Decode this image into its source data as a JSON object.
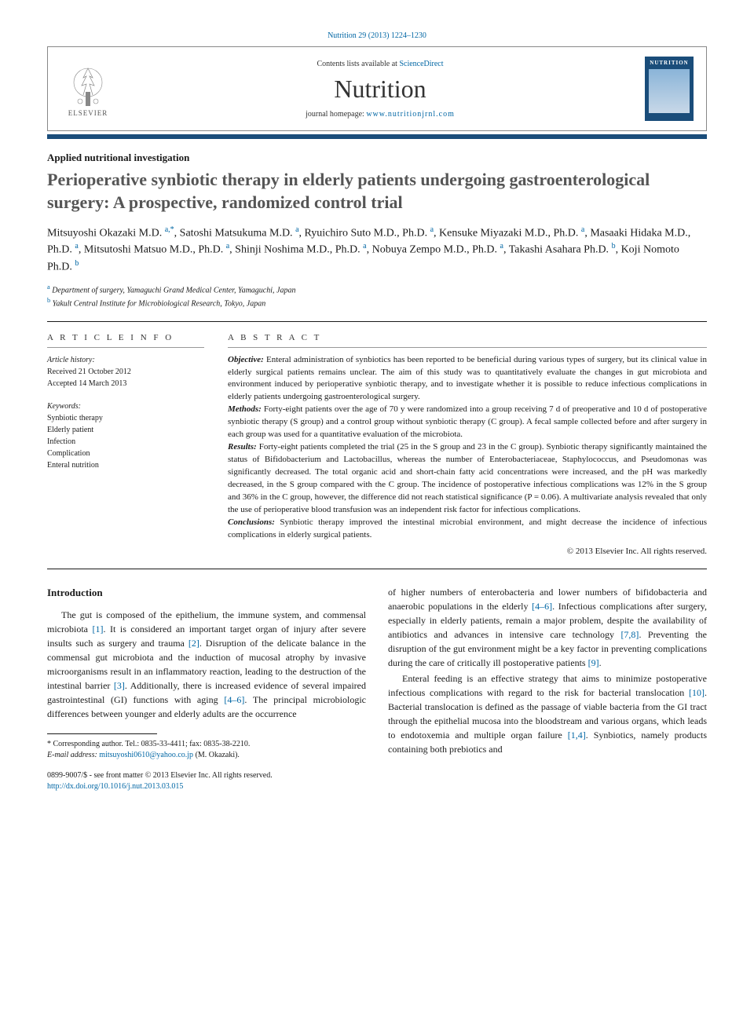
{
  "header": {
    "citation": "Nutrition 29 (2013) 1224–1230",
    "contents_prefix": "Contents lists available at ",
    "contents_link": "ScienceDirect",
    "journal": "Nutrition",
    "homepage_prefix": "journal homepage: ",
    "homepage_link": "www.nutritionjrnl.com",
    "elsevier": "ELSEVIER",
    "thumb_title": "NUTRITION"
  },
  "article": {
    "type": "Applied nutritional investigation",
    "title": "Perioperative synbiotic therapy in elderly patients undergoing gastroenterological surgery: A prospective, randomized control trial",
    "authors_html": "Mitsuyoshi Okazaki M.D. <sup>a,*</sup>, Satoshi Matsukuma M.D. <sup>a</sup>, Ryuichiro Suto M.D., Ph.D. <sup>a</sup>, Kensuke Miyazaki M.D., Ph.D. <sup>a</sup>, Masaaki Hidaka M.D., Ph.D. <sup>a</sup>, Mitsutoshi Matsuo M.D., Ph.D. <sup>a</sup>, Shinji Noshima M.D., Ph.D. <sup>a</sup>, Nobuya Zempo M.D., Ph.D. <sup>a</sup>, Takashi Asahara Ph.D. <sup>b</sup>, Koji Nomoto Ph.D. <sup>b</sup>",
    "affiliations": {
      "a": "Department of surgery, Yamaguchi Grand Medical Center, Yamaguchi, Japan",
      "b": "Yakult Central Institute for Microbiological Research, Tokyo, Japan"
    }
  },
  "info": {
    "heading_left": "A R T I C L E   I N F O",
    "heading_right": "A B S T R A C T",
    "history_label": "Article history:",
    "received": "Received 21 October 2012",
    "accepted": "Accepted 14 March 2013",
    "keywords_label": "Keywords:",
    "keywords": [
      "Synbiotic therapy",
      "Elderly patient",
      "Infection",
      "Complication",
      "Enteral nutrition"
    ]
  },
  "abstract": {
    "objective_lead": "Objective:",
    "objective": " Enteral administration of synbiotics has been reported to be beneficial during various types of surgery, but its clinical value in elderly surgical patients remains unclear. The aim of this study was to quantitatively evaluate the changes in gut microbiota and environment induced by perioperative synbiotic therapy, and to investigate whether it is possible to reduce infectious complications in elderly patients undergoing gastroenterological surgery.",
    "methods_lead": "Methods:",
    "methods": " Forty-eight patients over the age of 70 y were randomized into a group receiving 7 d of preoperative and 10 d of postoperative synbiotic therapy (S group) and a control group without synbiotic therapy (C group). A fecal sample collected before and after surgery in each group was used for a quantitative evaluation of the microbiota.",
    "results_lead": "Results:",
    "results": " Forty-eight patients completed the trial (25 in the S group and 23 in the C group). Synbiotic therapy significantly maintained the status of Bifidobacterium and Lactobacillus, whereas the number of Enterobacteriaceae, Staphylococcus, and Pseudomonas was significantly decreased. The total organic acid and short-chain fatty acid concentrations were increased, and the pH was markedly decreased, in the S group compared with the C group. The incidence of postoperative infectious complications was 12% in the S group and 36% in the C group, however, the difference did not reach statistical significance (P = 0.06). A multivariate analysis revealed that only the use of perioperative blood transfusion was an independent risk factor for infectious complications.",
    "conclusions_lead": "Conclusions:",
    "conclusions": " Synbiotic therapy improved the intestinal microbial environment, and might decrease the incidence of infectious complications in elderly surgical patients.",
    "copyright": "© 2013 Elsevier Inc. All rights reserved."
  },
  "body": {
    "intro_head": "Introduction",
    "left_p1": "The gut is composed of the epithelium, the immune system, and commensal microbiota [1]. It is considered an important target organ of injury after severe insults such as surgery and trauma [2]. Disruption of the delicate balance in the commensal gut microbiota and the induction of mucosal atrophy by invasive microorganisms result in an inflammatory reaction, leading to the destruction of the intestinal barrier [3]. Additionally, there is increased evidence of several impaired gastrointestinal (GI) functions with aging [4–6]. The principal microbiologic differences between younger and elderly adults are the occurrence",
    "right_p1": "of higher numbers of enterobacteria and lower numbers of bifidobacteria and anaerobic populations in the elderly [4–6]. Infectious complications after surgery, especially in elderly patients, remain a major problem, despite the availability of antibiotics and advances in intensive care technology [7,8]. Preventing the disruption of the gut environment might be a key factor in preventing complications during the care of critically ill postoperative patients [9].",
    "right_p2": "Enteral feeding is an effective strategy that aims to minimize postoperative infectious complications with regard to the risk for bacterial translocation [10]. Bacterial translocation is defined as the passage of viable bacteria from the GI tract through the epithelial mucosa into the bloodstream and various organs, which leads to endotoxemia and multiple organ failure [1,4]. Synbiotics, namely products containing both prebiotics and"
  },
  "footnote": {
    "corresponding": "* Corresponding author. Tel.: 0835-33-4411; fax: 0835-38-2210.",
    "email_label": "E-mail address:",
    "email": "mitsuyoshi0610@yahoo.co.jp",
    "email_suffix": " (M. Okazaki)."
  },
  "footer": {
    "line1": "0899-9007/$ - see front matter © 2013 Elsevier Inc. All rights reserved.",
    "doi": "http://dx.doi.org/10.1016/j.nut.2013.03.015"
  },
  "colors": {
    "link": "#0066a4",
    "bar": "#1a4d7a",
    "title_gray": "#555555"
  }
}
